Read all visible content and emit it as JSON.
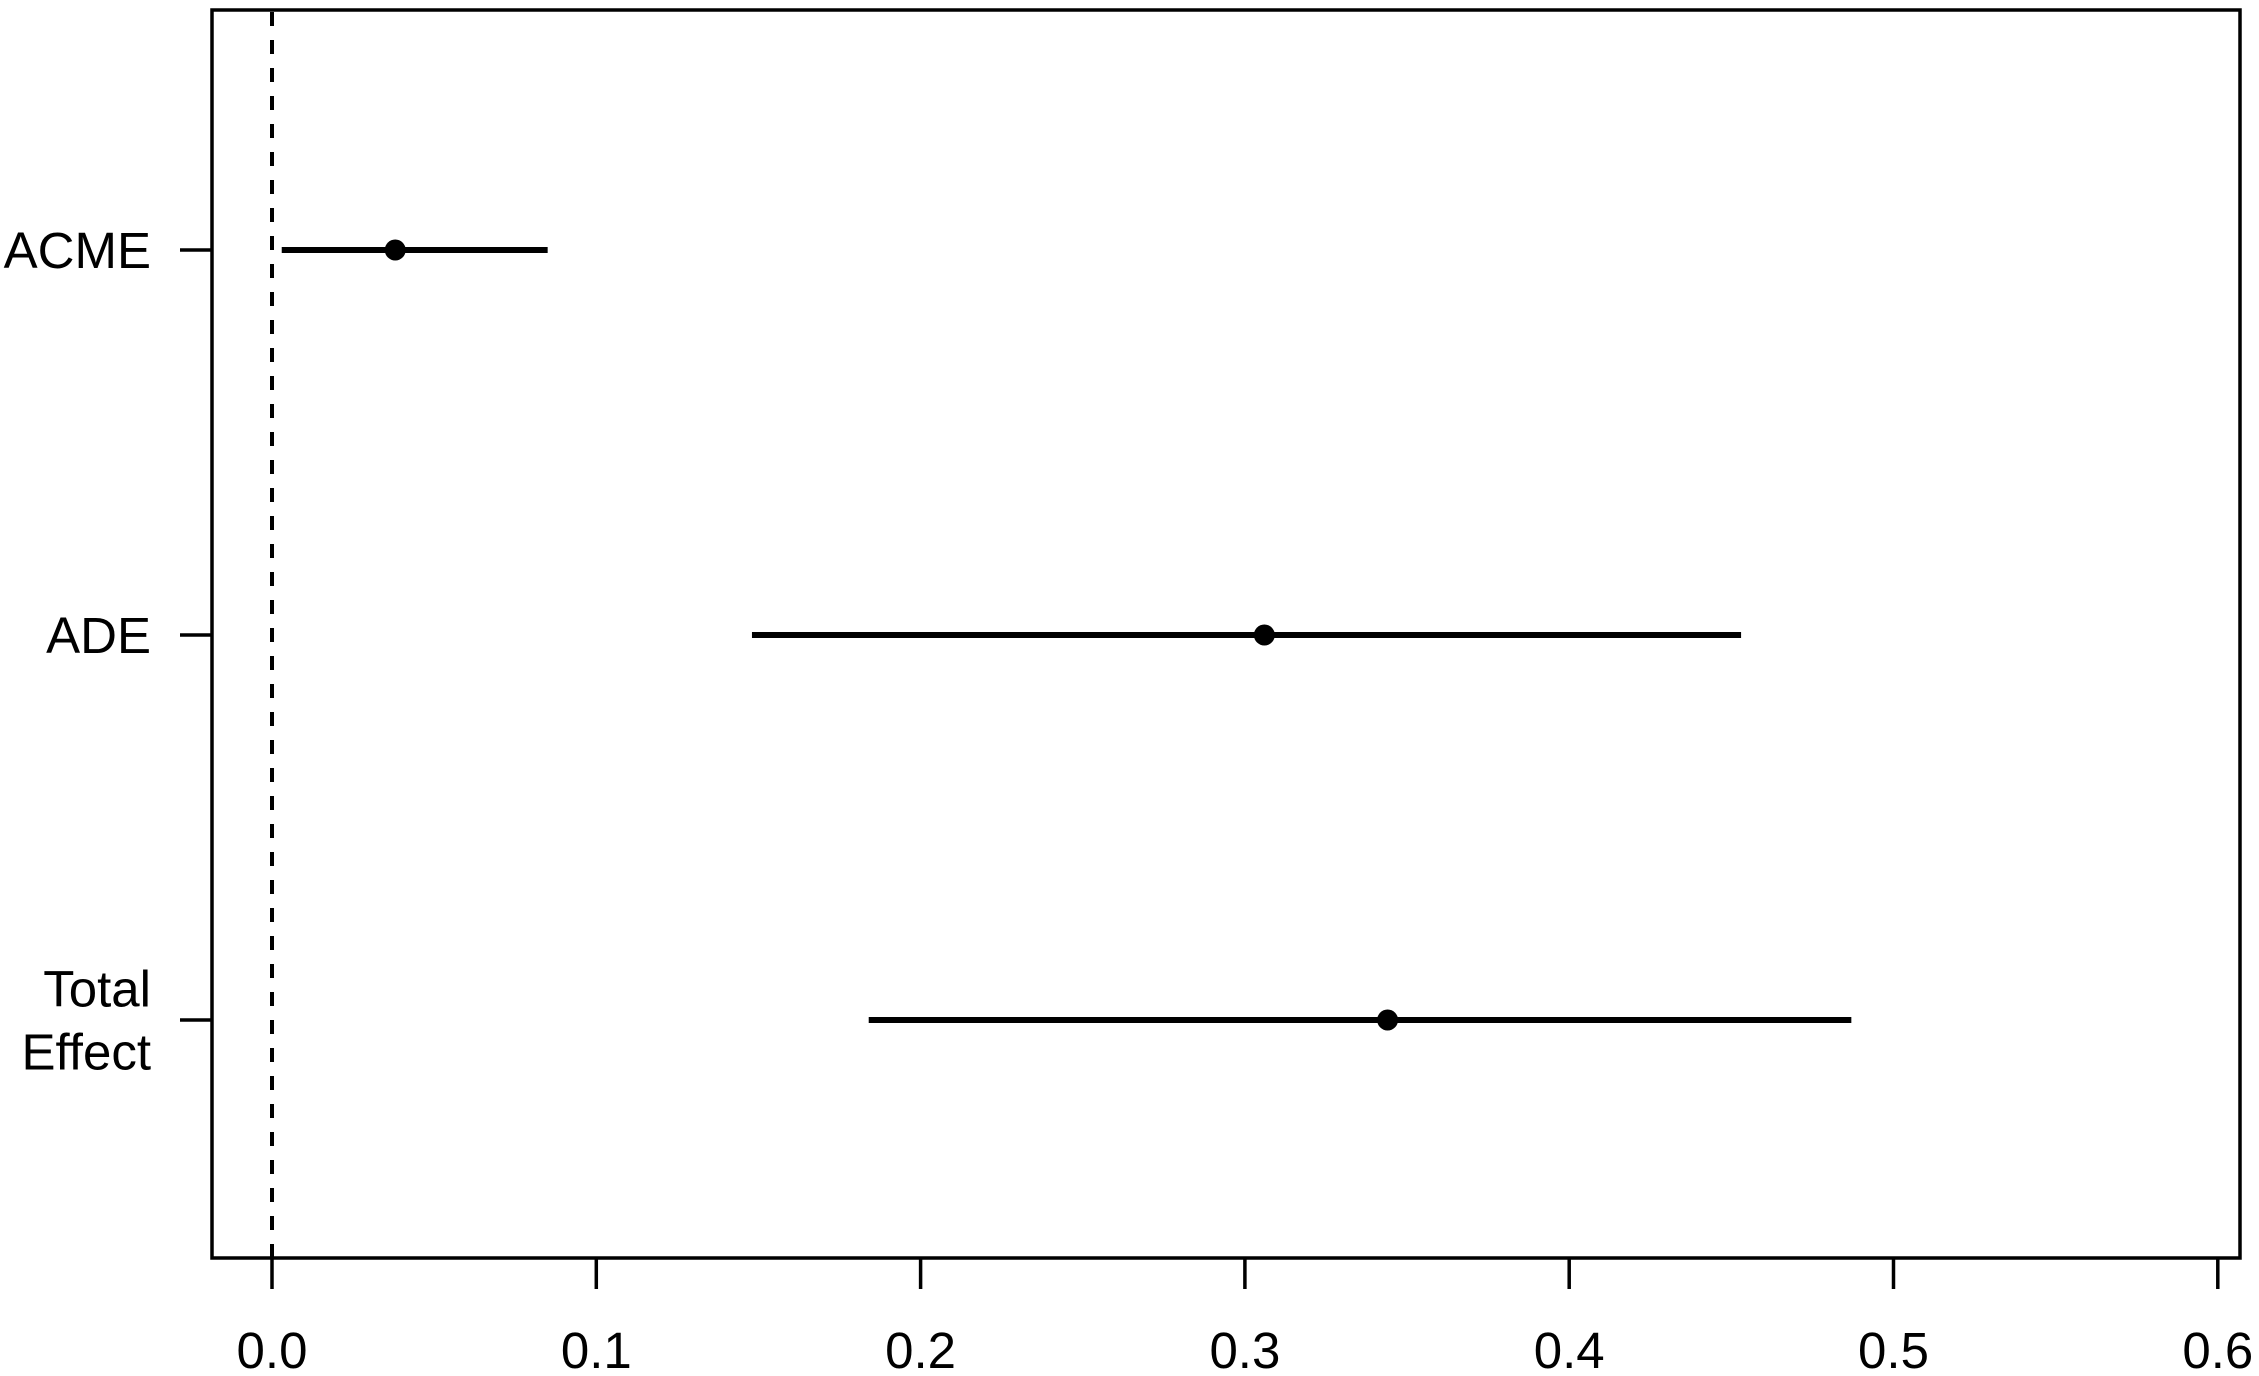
{
  "chart_data": {
    "type": "scatter",
    "subtype": "forest-dot-interval",
    "title": "",
    "xlabel": "",
    "ylabel": "",
    "categories": [
      "ACME",
      "ADE",
      "Total Effect"
    ],
    "points": [
      {
        "label": "ACME",
        "label_lines": [
          "ACME"
        ],
        "estimate": 0.038,
        "ci_low": 0.003,
        "ci_high": 0.085
      },
      {
        "label": "ADE",
        "label_lines": [
          "ADE"
        ],
        "estimate": 0.306,
        "ci_low": 0.148,
        "ci_high": 0.453
      },
      {
        "label": "Total Effect",
        "label_lines": [
          "Total",
          "Effect"
        ],
        "estimate": 0.344,
        "ci_low": 0.184,
        "ci_high": 0.487
      }
    ],
    "x_ticks": [
      0.0,
      0.1,
      0.2,
      0.3,
      0.4,
      0.5,
      0.6
    ],
    "x_tick_labels": [
      "0.0",
      "0.1",
      "0.2",
      "0.3",
      "0.4",
      "0.5",
      "0.6"
    ],
    "xlim": [
      -0.019,
      0.607
    ],
    "reference_line_x": 0.0,
    "grid": false,
    "legend": false,
    "colors": {
      "foreground": "#000000",
      "background": "#ffffff"
    }
  }
}
